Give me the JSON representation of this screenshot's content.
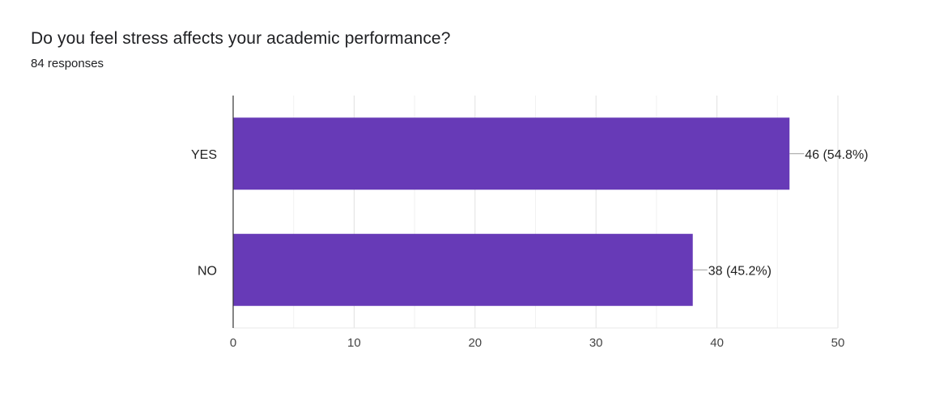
{
  "question": {
    "title": "Do you feel stress affects your academic performance?",
    "responses": "84 responses"
  },
  "chart_data": {
    "type": "bar",
    "orientation": "horizontal",
    "categories": [
      "YES",
      "NO"
    ],
    "values": [
      46,
      38
    ],
    "data_labels": [
      "46 (54.8%)",
      "38 (45.2%)"
    ],
    "xlim": [
      0,
      50
    ],
    "x_ticks": [
      0,
      10,
      20,
      30,
      40,
      50
    ],
    "grid": true,
    "bar_color": "#673ab7"
  }
}
